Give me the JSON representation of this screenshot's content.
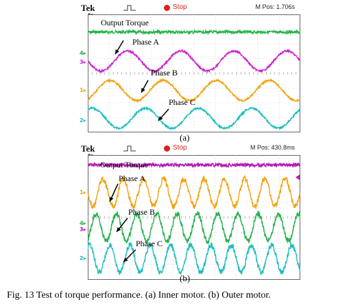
{
  "chart_data": [
    {
      "type": "line",
      "subtitle": "(a)",
      "header": {
        "brand": "Tek",
        "status": "Stop",
        "position": "M Pos: 1.706s"
      },
      "grid": true,
      "series": [
        {
          "name": "Output Torque",
          "color": "#22b14c",
          "shape": "flat-noisy",
          "level": 0.15,
          "amplitude": 0.0,
          "cycles": 0,
          "noise": 0.012
        },
        {
          "name": "Phase A",
          "color": "#cc22cc",
          "shape": "sine",
          "level": 0.395,
          "amplitude": 0.085,
          "cycles": 4.0,
          "phase": 0.0,
          "noise": 0.008
        },
        {
          "name": "Phase B",
          "color": "#f2a20d",
          "shape": "sine",
          "level": 0.645,
          "amplitude": 0.085,
          "cycles": 4.0,
          "phase": 2.094,
          "noise": 0.008
        },
        {
          "name": "Phase C",
          "color": "#1dbdbd",
          "shape": "sine",
          "level": 0.88,
          "amplitude": 0.085,
          "cycles": 4.0,
          "phase": 4.189,
          "noise": 0.008
        }
      ],
      "channel_markers": [
        {
          "label": "4▸",
          "color": "#22b14c",
          "level": 0.33
        },
        {
          "label": "3▸",
          "color": "#cc22cc",
          "level": 0.405
        },
        {
          "label": "1▸",
          "color": "#f2a20d",
          "level": 0.645
        },
        {
          "label": "2▸",
          "color": "#1dbdbd",
          "level": 0.9
        }
      ]
    },
    {
      "type": "line",
      "subtitle": "(b)",
      "header": {
        "brand": "Tek",
        "status": "Stop",
        "position": "M Pos: 430.8ms"
      },
      "grid": true,
      "series": [
        {
          "name": "Output Torque",
          "color": "#b31ab3",
          "shape": "flat-noisy",
          "level": 0.08,
          "amplitude": 0.0,
          "cycles": 0,
          "noise": 0.014
        },
        {
          "name": "Phase A",
          "color": "#f2a20d",
          "shape": "sine",
          "level": 0.3,
          "amplitude": 0.11,
          "cycles": 10.5,
          "phase": 0.0,
          "noise": 0.022
        },
        {
          "name": "Phase B",
          "color": "#22b14c",
          "shape": "sine",
          "level": 0.58,
          "amplitude": 0.11,
          "cycles": 10.5,
          "phase": 2.094,
          "noise": 0.022
        },
        {
          "name": "Phase C",
          "color": "#1dbdbd",
          "shape": "sine",
          "level": 0.83,
          "amplitude": 0.11,
          "cycles": 10.5,
          "phase": 4.189,
          "noise": 0.022
        }
      ],
      "channel_markers": [
        {
          "label": "1▸",
          "color": "#f2a20d",
          "level": 0.3
        },
        {
          "label": "4▸",
          "color": "#22b14c",
          "level": 0.55
        },
        {
          "label": "3▸",
          "color": "#b31ab3",
          "level": 0.6
        },
        {
          "label": "2▸",
          "color": "#1dbdbd",
          "level": 0.83
        }
      ],
      "right_marker_color": "#b31ab3"
    }
  ],
  "caption": "Fig. 13 Test of torque performance. (a) Inner motor. (b) Outer motor."
}
